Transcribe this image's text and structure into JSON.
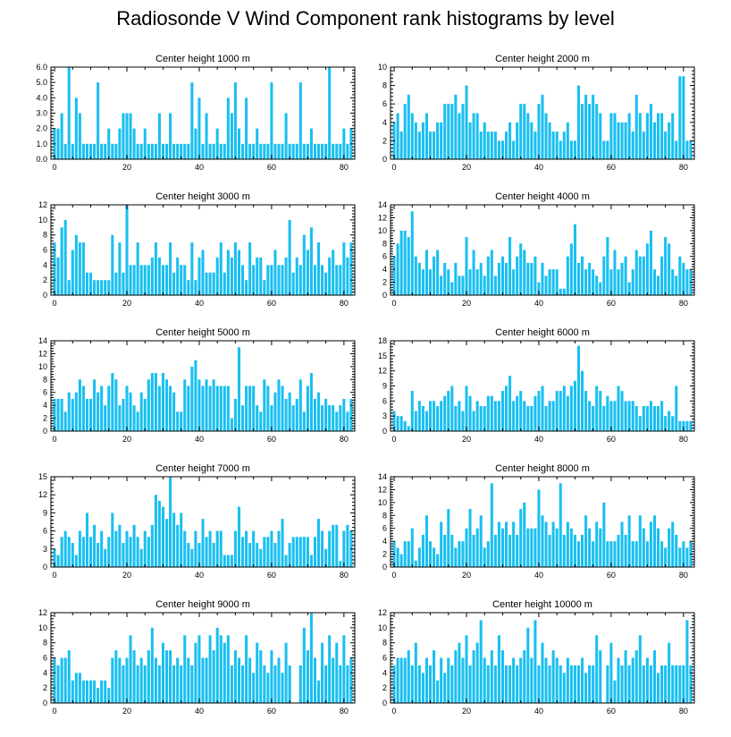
{
  "title": "Radiosonde V Wind Component rank histograms by level",
  "bar_color": "#19bff0",
  "chart_data": [
    {
      "type": "bar",
      "title": "Center height 1000 m",
      "xlim": [
        -1,
        83
      ],
      "ylim": [
        0,
        6
      ],
      "xticks": [
        0,
        20,
        40,
        60,
        80
      ],
      "xtick_labels": [
        "0",
        "20",
        "40",
        "60",
        "80"
      ],
      "yticks": [
        0,
        1,
        2,
        3,
        4,
        5,
        6
      ],
      "ytick_labels": [
        "0.0",
        "1.0",
        "2.0",
        "3.0",
        "4.0",
        "5.0",
        "6.0"
      ],
      "values": [
        2,
        2,
        3,
        1,
        6,
        1,
        4,
        3,
        1,
        1,
        1,
        1,
        5,
        1,
        1,
        2,
        1,
        1,
        2,
        3,
        3,
        3,
        2,
        1,
        1,
        2,
        1,
        1,
        1,
        3,
        1,
        1,
        3,
        1,
        1,
        1,
        1,
        1,
        5,
        2,
        4,
        1,
        3,
        1,
        1,
        2,
        1,
        1,
        4,
        3,
        5,
        2,
        1,
        4,
        1,
        1,
        2,
        1,
        1,
        1,
        5,
        1,
        1,
        1,
        3,
        1,
        1,
        1,
        5,
        1,
        1,
        2,
        1,
        1,
        1,
        1,
        6,
        1,
        1,
        1,
        2,
        1,
        2
      ]
    },
    {
      "type": "bar",
      "title": "Center height 2000 m",
      "xlim": [
        -1,
        83
      ],
      "ylim": [
        0,
        10
      ],
      "xticks": [
        0,
        20,
        40,
        60,
        80
      ],
      "xtick_labels": [
        "0",
        "20",
        "40",
        "60",
        "80"
      ],
      "yticks": [
        0,
        2,
        4,
        6,
        8,
        10
      ],
      "ytick_labels": [
        "0",
        "2",
        "4",
        "6",
        "8",
        "10"
      ],
      "values": [
        4,
        5,
        3,
        6,
        7,
        5,
        4,
        3,
        4,
        5,
        3,
        3,
        4,
        4,
        6,
        6,
        6,
        7,
        5,
        6,
        8,
        4,
        5,
        5,
        3,
        4,
        3,
        3,
        3,
        2,
        2,
        3,
        4,
        2,
        4,
        6,
        6,
        5,
        4,
        3,
        6,
        7,
        5,
        4,
        3,
        3,
        2,
        3,
        4,
        2,
        2,
        8,
        6,
        7,
        6,
        7,
        6,
        5,
        2,
        2,
        5,
        5,
        4,
        4,
        4,
        5,
        3,
        7,
        5,
        3,
        5,
        6,
        4,
        5,
        5,
        3,
        4,
        5,
        2,
        9,
        9,
        2,
        2
      ]
    },
    {
      "type": "bar",
      "title": "Center height 3000 m",
      "xlim": [
        -1,
        83
      ],
      "ylim": [
        0,
        12
      ],
      "xticks": [
        0,
        20,
        40,
        60,
        80
      ],
      "xtick_labels": [
        "0",
        "20",
        "40",
        "60",
        "80"
      ],
      "yticks": [
        0,
        2,
        4,
        6,
        8,
        10,
        12
      ],
      "ytick_labels": [
        "0",
        "2",
        "4",
        "6",
        "8",
        "10",
        "12"
      ],
      "values": [
        7,
        5,
        9,
        10,
        2,
        6,
        8,
        7,
        7,
        3,
        3,
        2,
        2,
        2,
        2,
        2,
        8,
        3,
        7,
        3,
        12,
        4,
        4,
        7,
        4,
        4,
        4,
        5,
        7,
        5,
        4,
        4,
        7,
        3,
        5,
        4,
        4,
        2,
        7,
        2,
        5,
        6,
        3,
        3,
        3,
        5,
        7,
        3,
        6,
        5,
        7,
        6,
        4,
        2,
        7,
        4,
        5,
        5,
        2,
        4,
        4,
        6,
        4,
        4,
        5,
        10,
        3,
        5,
        4,
        8,
        6,
        9,
        4,
        7,
        4,
        3,
        5,
        6,
        4,
        4,
        7,
        5,
        7
      ]
    },
    {
      "type": "bar",
      "title": "Center height 4000 m",
      "xlim": [
        -1,
        83
      ],
      "ylim": [
        0,
        14
      ],
      "xticks": [
        0,
        20,
        40,
        60,
        80
      ],
      "xtick_labels": [
        "0",
        "20",
        "40",
        "60",
        "80"
      ],
      "yticks": [
        0,
        2,
        4,
        6,
        8,
        10,
        12,
        14
      ],
      "ytick_labels": [
        "0",
        "2",
        "4",
        "6",
        "8",
        "10",
        "12",
        "14"
      ],
      "values": [
        6,
        8,
        10,
        10,
        9,
        13,
        6,
        5,
        4,
        7,
        4,
        6,
        7,
        3,
        5,
        4,
        2,
        5,
        3,
        3,
        9,
        4,
        7,
        4,
        5,
        3,
        6,
        7,
        3,
        5,
        6,
        5,
        9,
        4,
        6,
        8,
        7,
        5,
        5,
        6,
        2,
        5,
        3,
        4,
        4,
        4,
        1,
        1,
        6,
        8,
        11,
        5,
        6,
        4,
        5,
        4,
        3,
        2,
        6,
        9,
        4,
        7,
        4,
        5,
        6,
        2,
        4,
        7,
        6,
        6,
        8,
        10,
        4,
        3,
        6,
        9,
        8,
        4,
        3,
        6,
        5,
        4,
        4
      ]
    },
    {
      "type": "bar",
      "title": "Center height 5000 m",
      "xlim": [
        -1,
        83
      ],
      "ylim": [
        0,
        14
      ],
      "xticks": [
        0,
        20,
        40,
        60,
        80
      ],
      "xtick_labels": [
        "0",
        "20",
        "40",
        "60",
        "80"
      ],
      "yticks": [
        0,
        2,
        4,
        6,
        8,
        10,
        12,
        14
      ],
      "ytick_labels": [
        "0",
        "2",
        "4",
        "6",
        "8",
        "10",
        "12",
        "14"
      ],
      "values": [
        5,
        5,
        5,
        3,
        6,
        5,
        6,
        8,
        7,
        5,
        5,
        8,
        6,
        7,
        4,
        7,
        9,
        8,
        4,
        5,
        7,
        6,
        4,
        3,
        6,
        5,
        8,
        9,
        9,
        7,
        9,
        8,
        7,
        6,
        3,
        3,
        8,
        7,
        10,
        11,
        8,
        7,
        8,
        7,
        8,
        7,
        7,
        7,
        7,
        2,
        5,
        13,
        4,
        7,
        7,
        7,
        4,
        3,
        8,
        7,
        4,
        6,
        8,
        7,
        5,
        6,
        4,
        5,
        8,
        3,
        7,
        9,
        5,
        6,
        4,
        5,
        4,
        4,
        3,
        4,
        5,
        3,
        5
      ]
    },
    {
      "type": "bar",
      "title": "Center height 6000 m",
      "xlim": [
        -1,
        83
      ],
      "ylim": [
        0,
        18
      ],
      "xticks": [
        0,
        20,
        40,
        60,
        80
      ],
      "xtick_labels": [
        "0",
        "20",
        "40",
        "60",
        "80"
      ],
      "yticks": [
        0,
        3,
        6,
        9,
        12,
        15,
        18
      ],
      "ytick_labels": [
        "0",
        "3",
        "6",
        "9",
        "12",
        "15",
        "18"
      ],
      "values": [
        4,
        3,
        3,
        2,
        1,
        8,
        4,
        6,
        5,
        4,
        6,
        6,
        5,
        6,
        7,
        8,
        9,
        5,
        6,
        4,
        9,
        7,
        4,
        6,
        5,
        5,
        7,
        7,
        6,
        6,
        8,
        9,
        11,
        6,
        7,
        8,
        6,
        5,
        5,
        7,
        8,
        9,
        5,
        6,
        6,
        8,
        8,
        9,
        7,
        9,
        10,
        17,
        12,
        8,
        6,
        5,
        9,
        8,
        5,
        7,
        6,
        6,
        9,
        8,
        6,
        6,
        6,
        5,
        3,
        5,
        5,
        6,
        5,
        5,
        6,
        3,
        4,
        3,
        9,
        2,
        2,
        2,
        2
      ]
    },
    {
      "type": "bar",
      "title": "Center height 7000 m",
      "xlim": [
        -1,
        83
      ],
      "ylim": [
        0,
        15
      ],
      "xticks": [
        0,
        20,
        40,
        60,
        80
      ],
      "xtick_labels": [
        "0",
        "20",
        "40",
        "60",
        "80"
      ],
      "yticks": [
        0,
        3,
        6,
        9,
        12,
        15
      ],
      "ytick_labels": [
        "0",
        "3",
        "6",
        "9",
        "12",
        "15"
      ],
      "values": [
        3,
        2,
        5,
        6,
        5,
        4,
        2,
        6,
        5,
        9,
        5,
        7,
        4,
        6,
        3,
        5,
        9,
        6,
        7,
        4,
        6,
        5,
        7,
        5,
        3,
        6,
        5,
        7,
        12,
        11,
        10,
        8,
        15,
        9,
        7,
        9,
        6,
        4,
        3,
        6,
        4,
        8,
        5,
        6,
        4,
        6,
        6,
        2,
        2,
        2,
        6,
        10,
        5,
        6,
        4,
        6,
        4,
        3,
        5,
        5,
        6,
        4,
        6,
        8,
        2,
        4,
        5,
        5,
        5,
        5,
        5,
        2,
        5,
        8,
        6,
        3,
        6,
        7,
        7,
        1,
        6,
        7,
        6
      ]
    },
    {
      "type": "bar",
      "title": "Center height 8000 m",
      "xlim": [
        -1,
        83
      ],
      "ylim": [
        0,
        14
      ],
      "xticks": [
        0,
        20,
        40,
        60,
        80
      ],
      "xtick_labels": [
        "0",
        "20",
        "40",
        "60",
        "80"
      ],
      "yticks": [
        0,
        2,
        4,
        6,
        8,
        10,
        12,
        14
      ],
      "ytick_labels": [
        "0",
        "2",
        "4",
        "6",
        "8",
        "10",
        "12",
        "14"
      ],
      "values": [
        4,
        3,
        2,
        4,
        4,
        6,
        1,
        3,
        5,
        8,
        4,
        3,
        2,
        7,
        5,
        9,
        5,
        3,
        4,
        4,
        6,
        9,
        5,
        6,
        8,
        3,
        4,
        13,
        5,
        7,
        6,
        7,
        5,
        7,
        5,
        9,
        10,
        6,
        6,
        6,
        12,
        8,
        7,
        5,
        7,
        6,
        13,
        5,
        7,
        6,
        5,
        4,
        5,
        8,
        6,
        4,
        7,
        6,
        10,
        4,
        4,
        4,
        5,
        7,
        5,
        8,
        4,
        4,
        8,
        6,
        4,
        7,
        8,
        6,
        4,
        3,
        6,
        7,
        5,
        3,
        4,
        3,
        4
      ]
    },
    {
      "type": "bar",
      "title": "Center height 9000 m",
      "xlim": [
        -1,
        83
      ],
      "ylim": [
        0,
        12
      ],
      "xticks": [
        0,
        20,
        40,
        60,
        80
      ],
      "xtick_labels": [
        "0",
        "20",
        "40",
        "60",
        "80"
      ],
      "yticks": [
        0,
        2,
        4,
        6,
        8,
        10,
        12
      ],
      "ytick_labels": [
        "0",
        "2",
        "4",
        "6",
        "8",
        "10",
        "12"
      ],
      "values": [
        6,
        5,
        6,
        6,
        7,
        3,
        4,
        4,
        3,
        3,
        3,
        3,
        2,
        3,
        3,
        2,
        6,
        7,
        6,
        5,
        6,
        9,
        7,
        5,
        6,
        5,
        7,
        10,
        6,
        5,
        8,
        7,
        7,
        5,
        6,
        5,
        9,
        6,
        5,
        8,
        9,
        6,
        6,
        9,
        7,
        10,
        9,
        8,
        9,
        5,
        7,
        6,
        5,
        9,
        6,
        4,
        8,
        7,
        5,
        4,
        7,
        5,
        6,
        4,
        8,
        5,
        0,
        0,
        5,
        10,
        7,
        12,
        6,
        3,
        8,
        5,
        9,
        6,
        8,
        5,
        9,
        5,
        6
      ]
    },
    {
      "type": "bar",
      "title": "Center height 10000 m",
      "xlim": [
        -1,
        83
      ],
      "ylim": [
        0,
        12
      ],
      "xticks": [
        0,
        20,
        40,
        60,
        80
      ],
      "xtick_labels": [
        "0",
        "20",
        "40",
        "60",
        "80"
      ],
      "yticks": [
        0,
        2,
        4,
        6,
        8,
        10,
        12
      ],
      "ytick_labels": [
        "0",
        "2",
        "4",
        "6",
        "8",
        "10",
        "12"
      ],
      "values": [
        5,
        6,
        6,
        6,
        7,
        5,
        8,
        5,
        4,
        6,
        5,
        7,
        3,
        6,
        4,
        6,
        5,
        7,
        8,
        6,
        9,
        5,
        7,
        8,
        11,
        6,
        5,
        7,
        5,
        9,
        7,
        5,
        5,
        6,
        5,
        6,
        7,
        10,
        6,
        11,
        5,
        8,
        6,
        5,
        7,
        6,
        5,
        4,
        6,
        5,
        5,
        5,
        6,
        4,
        5,
        5,
        9,
        7,
        0,
        5,
        8,
        3,
        6,
        5,
        7,
        5,
        6,
        7,
        9,
        5,
        6,
        5,
        7,
        4,
        5,
        5,
        8,
        5,
        5,
        5,
        5,
        11,
        5
      ]
    }
  ]
}
